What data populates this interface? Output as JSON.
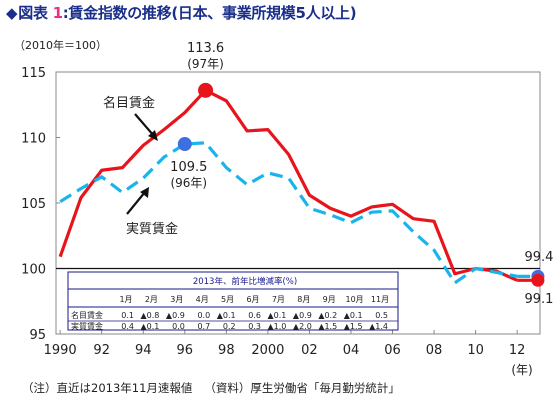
{
  "header": {
    "diamond": "◆",
    "label": "図表",
    "number": "1",
    "text": ":賃金指数の推移(日本、事業所規模5人以上)"
  },
  "unit_note": "（2010年＝100）",
  "footnote": {
    "note": "（注）直近は2013年11月速報値",
    "source": "（資料）厚生労働省「毎月勤労統計」"
  },
  "colors": {
    "nominal": "#e8141c",
    "real": "#1ab4ec",
    "highlight_blue": "#3e6fe0",
    "table_border": "#1a1a8a"
  },
  "chart_data": {
    "type": "line",
    "x": [
      1990,
      1991,
      1992,
      1993,
      1994,
      1995,
      1996,
      1997,
      1998,
      1999,
      2000,
      2001,
      2002,
      2003,
      2004,
      2005,
      2006,
      2007,
      2008,
      2009,
      2010,
      2011,
      2012
    ],
    "ylim": [
      95,
      115
    ],
    "yticks": [
      95,
      100,
      105,
      110,
      115
    ],
    "xlim": [
      1989.8,
      2013.1
    ],
    "xtick_labels": [
      "1990",
      "92",
      "94",
      "96",
      "98",
      "2000",
      "02",
      "04",
      "06",
      "08",
      "10",
      "12"
    ],
    "xtick_values": [
      1990,
      1992,
      1994,
      1996,
      1998,
      2000,
      2002,
      2004,
      2006,
      2008,
      2010,
      2012
    ],
    "x_unit": "(年)",
    "reference_line": 100,
    "series": [
      {
        "name": "名目賃金",
        "color": "nominal",
        "values": [
          100.9,
          105.4,
          107.5,
          107.7,
          109.4,
          110.6,
          111.9,
          113.6,
          112.8,
          110.5,
          110.6,
          108.7,
          105.6,
          104.6,
          104.0,
          104.7,
          104.9,
          103.8,
          103.6,
          99.6,
          100.0,
          99.8,
          99.1
        ]
      },
      {
        "name": "実質賃金",
        "color": "real",
        "values": [
          105.1,
          106.1,
          107.0,
          105.8,
          106.9,
          108.5,
          109.5,
          109.6,
          107.7,
          106.4,
          107.3,
          106.9,
          104.6,
          104.1,
          103.5,
          104.3,
          104.4,
          102.8,
          101.4,
          98.9,
          100.0,
          99.7,
          99.4
        ]
      }
    ],
    "highlights": [
      {
        "series": "名目賃金",
        "x": 1997,
        "y": 113.6,
        "color": "nominal",
        "value_label": "113.6",
        "period_label": "(97年)"
      },
      {
        "series": "実質賃金",
        "x": 1996,
        "y": 109.5,
        "color": "highlight_blue",
        "value_label": "109.5",
        "period_label": "(96年)"
      },
      {
        "series": "実質賃金",
        "x": 2013,
        "y": 99.4,
        "color": "highlight_blue",
        "value_label": "99.4",
        "period_label": ""
      },
      {
        "series": "名目賃金",
        "x": 2013,
        "y": 99.1,
        "color": "nominal",
        "value_label": "99.1",
        "period_label": ""
      }
    ],
    "inset_table": {
      "title": "2013年、前年比増減率(%)",
      "months": [
        "1月",
        "2月",
        "3月",
        "4月",
        "5月",
        "6月",
        "7月",
        "8月",
        "9月",
        "10月",
        "11月"
      ],
      "rows": [
        {
          "label": "名目賃金",
          "values": [
            "0.1",
            "▲0.8",
            "▲0.9",
            "0.0",
            "▲0.1",
            "0.6",
            "▲0.1",
            "▲0.9",
            "▲0.2",
            "▲0.1",
            "0.5"
          ]
        },
        {
          "label": "実質賃金",
          "values": [
            "0.4",
            "▲0.1",
            "0.0",
            "0.7",
            "0.2",
            "0.3",
            "▲1.0",
            "▲2.0",
            "▲1.5",
            "▲1.5",
            "▲1.4"
          ]
        }
      ]
    }
  }
}
